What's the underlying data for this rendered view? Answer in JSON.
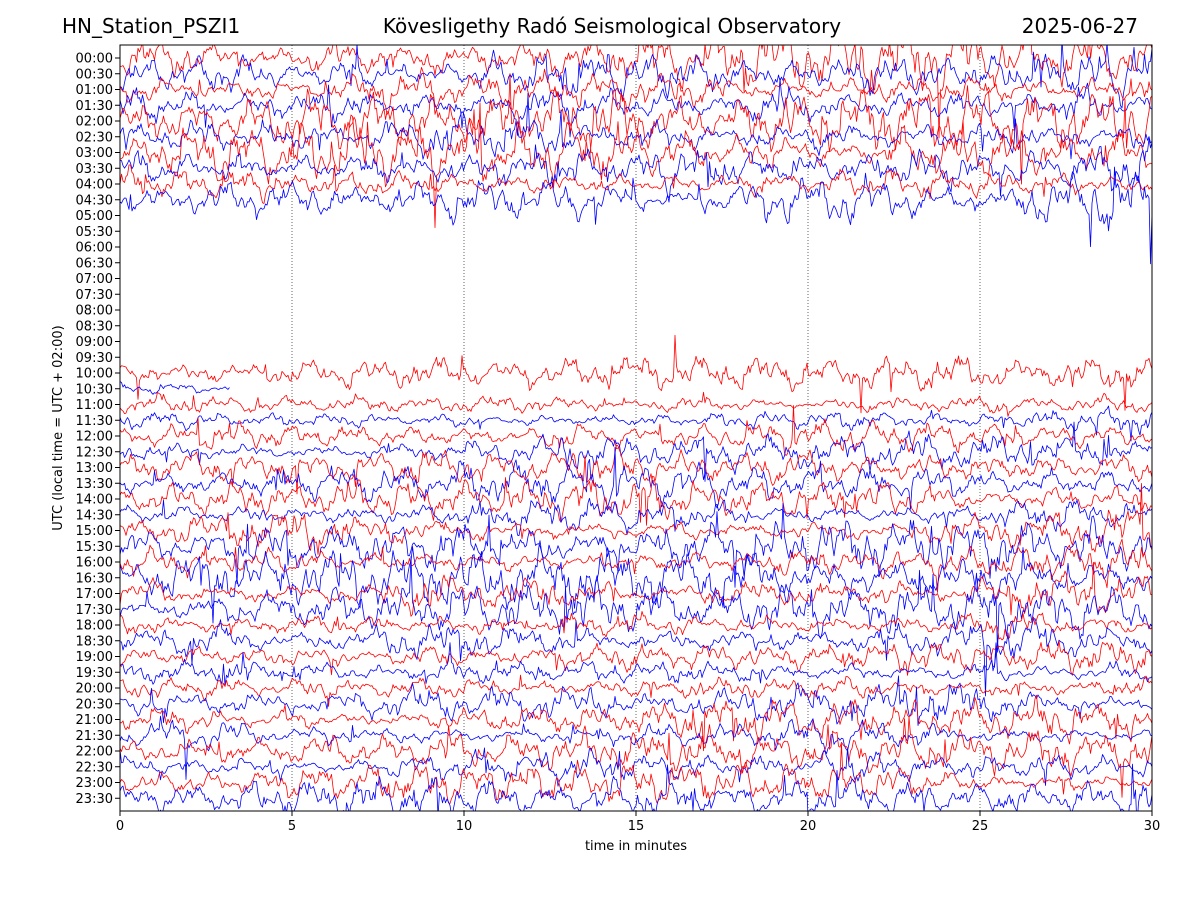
{
  "header": {
    "left": "HN_Station_PSZI1",
    "center": "Kövesligethy Radó Seismological Observatory",
    "right": "2025-06-27"
  },
  "chart_data": {
    "type": "line",
    "title": "Kövesligethy Radó Seismological Observatory",
    "xlabel": "time in minutes",
    "ylabel": "UTC (local time = UTC + 02:00)",
    "xlim": [
      0,
      30
    ],
    "x_ticks": [
      0,
      5,
      10,
      15,
      20,
      25,
      30
    ],
    "y_tick_labels": [
      "00:00",
      "00:30",
      "01:00",
      "01:30",
      "02:00",
      "02:30",
      "03:00",
      "03:30",
      "04:00",
      "04:30",
      "05:00",
      "05:30",
      "06:00",
      "06:30",
      "07:00",
      "07:30",
      "08:00",
      "08:30",
      "09:00",
      "09:30",
      "10:00",
      "10:30",
      "11:00",
      "11:30",
      "12:00",
      "12:30",
      "13:00",
      "13:30",
      "14:00",
      "14:30",
      "15:00",
      "15:30",
      "16:00",
      "16:30",
      "17:00",
      "17:30",
      "18:00",
      "18:30",
      "19:00",
      "19:30",
      "20:00",
      "20:30",
      "21:00",
      "21:30",
      "22:00",
      "22:30",
      "23:00",
      "23:30"
    ],
    "vertical_gridlines_at": [
      5,
      10,
      15,
      20,
      25
    ],
    "trace_colors": [
      "#ff0000",
      "#0000ff"
    ],
    "gap_rows": {
      "from": "05:00",
      "to": "09:30"
    },
    "partial_row": {
      "row": "10:30",
      "end_minute": 3.2
    },
    "row_amplitude_levels": [
      3.2,
      3.2,
      3.2,
      3.2,
      3.0,
      3.0,
      3.0,
      3.0,
      2.8,
      2.8,
      0,
      0,
      0,
      0,
      0,
      0,
      0,
      0,
      0,
      0,
      1.6,
      1.4,
      1.3,
      1.5,
      1.6,
      1.7,
      1.8,
      2.0,
      2.2,
      2.4,
      2.5,
      2.6,
      2.6,
      2.6,
      2.5,
      2.4,
      2.3,
      2.2,
      2.2,
      2.1,
      2.1,
      2.0,
      2.0,
      2.0,
      1.9,
      1.9,
      1.9,
      2.0
    ]
  },
  "colors": {
    "trace_even": "#ff0000",
    "trace_odd": "#0000ff",
    "axes": "#000000",
    "gridline": "#000000"
  }
}
